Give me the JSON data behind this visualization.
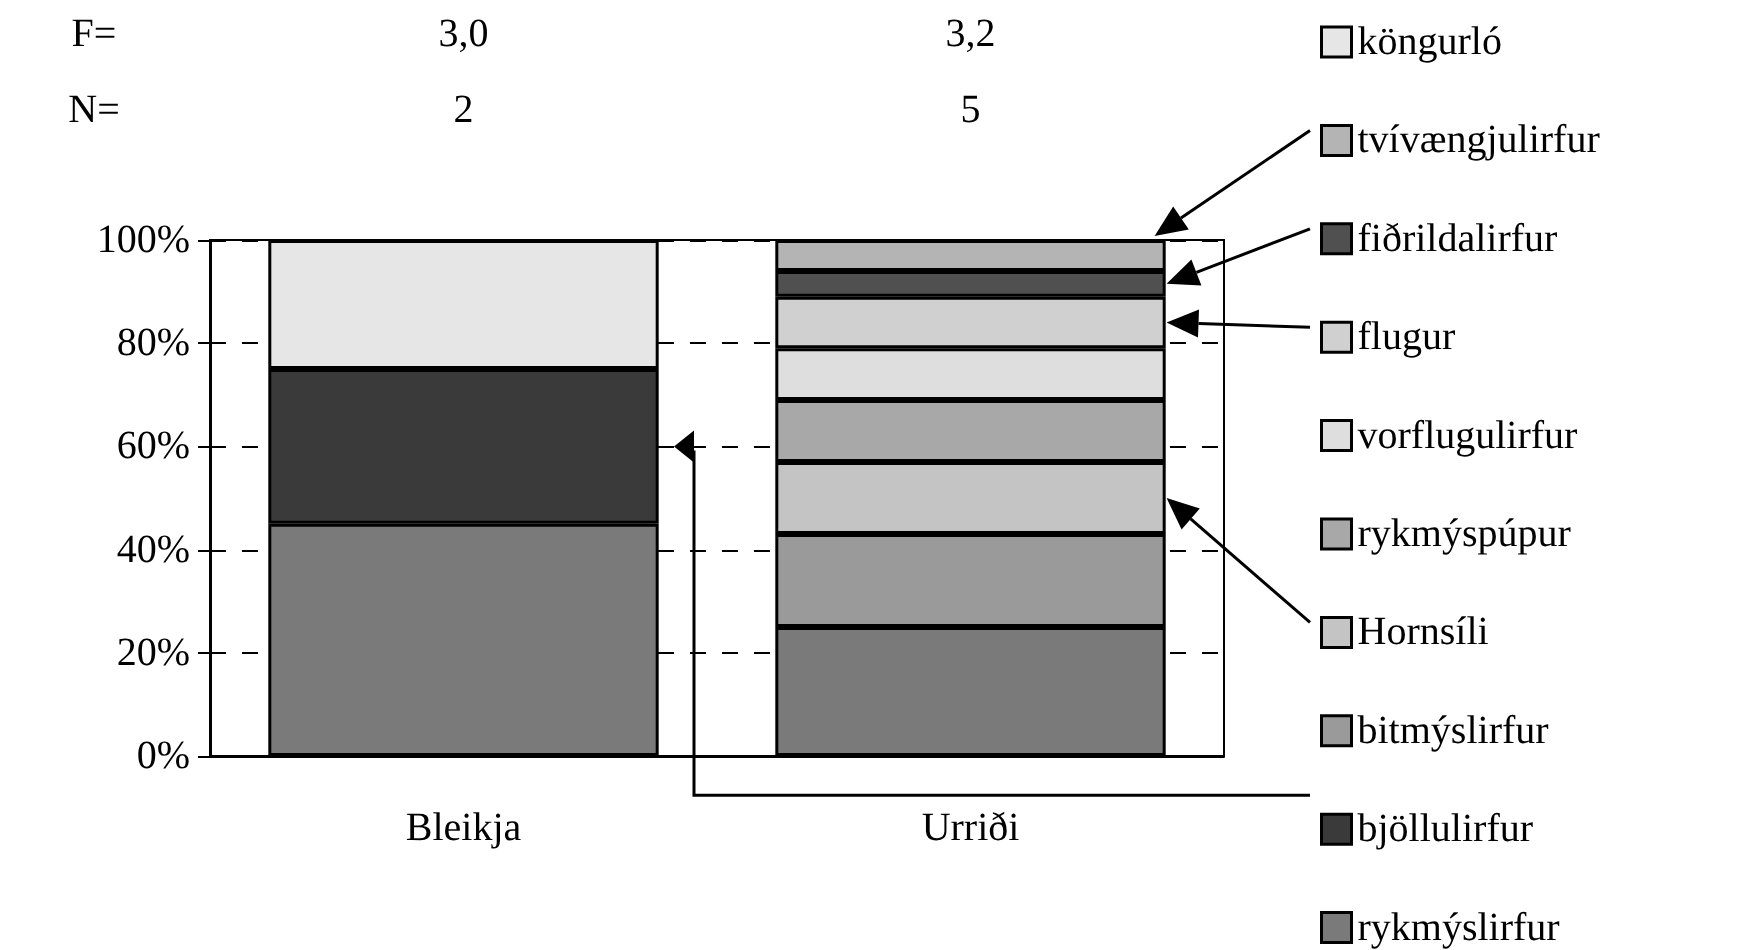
{
  "chart_data": {
    "type": "bar",
    "stacked": true,
    "categories": [
      "Bleikja",
      "Urriði"
    ],
    "series": [
      {
        "name": "rykmýslirfur",
        "color": "#7a7a7a",
        "values": [
          45,
          25
        ]
      },
      {
        "name": "bjöllulirfur",
        "color": "#3a3a3a",
        "values": [
          30,
          null
        ]
      },
      {
        "name": "bitmýslirfur",
        "color": "#9a9a9a",
        "values": [
          null,
          18
        ]
      },
      {
        "name": "Hornsíli",
        "color": "#c4c4c4",
        "values": [
          null,
          14
        ]
      },
      {
        "name": "rykmýspúpur",
        "color": "#a8a8a8",
        "values": [
          null,
          12
        ]
      },
      {
        "name": "vorflugulirfur",
        "color": "#dedede",
        "values": [
          null,
          10
        ]
      },
      {
        "name": "flugur",
        "color": "#d0d0d0",
        "values": [
          null,
          10
        ]
      },
      {
        "name": "fiðrildalirfur",
        "color": "#505050",
        "values": [
          null,
          5
        ]
      },
      {
        "name": "tvívængjulirfur",
        "color": "#b4b4b4",
        "values": [
          null,
          6
        ]
      },
      {
        "name": "köngurló",
        "color": "#e6e6e6",
        "values": [
          25,
          null
        ]
      }
    ],
    "ylim": [
      0,
      100
    ],
    "yticks": [
      {
        "value": 0,
        "label": "0%"
      },
      {
        "value": 20,
        "label": "20%"
      },
      {
        "value": 40,
        "label": "40%"
      },
      {
        "value": 60,
        "label": "60%"
      },
      {
        "value": 80,
        "label": "80%"
      },
      {
        "value": 100,
        "label": "100%"
      }
    ],
    "grid": "y",
    "legend": "right",
    "annotations": [
      "F=",
      "3,0",
      "3,2",
      "N=",
      "2",
      "5"
    ]
  }
}
